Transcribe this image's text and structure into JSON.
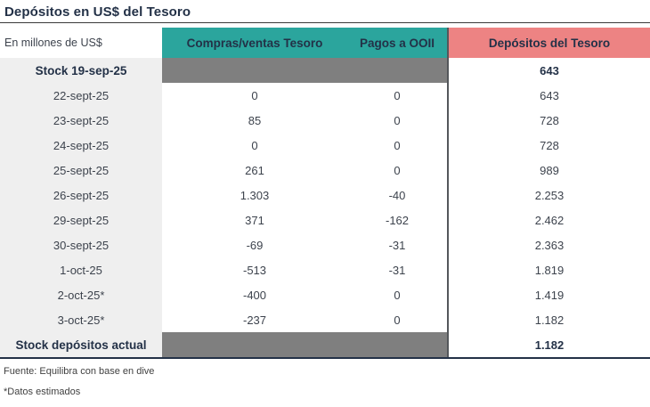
{
  "title": "Depósitos en US$ del Tesoro",
  "unit_label": "En millones de US$",
  "footnotes": {
    "source": "Fuente: Equilibra con base en dive",
    "estimate": "*Datos estimados"
  },
  "colors": {
    "teal_header": "#2BA59D",
    "salmon_header": "#ED8383",
    "gray_blocked_cell": "#7F7F7F",
    "label_column_bg": "#EFEFEF",
    "navy_text": "#233147"
  },
  "chart_data": {
    "type": "table",
    "title": "Depósitos en US$ del Tesoro",
    "unit_label": "En millones de US$",
    "columns": [
      "",
      "Compras/ventas Tesoro",
      "Pagos a OOII",
      "Depósitos del Tesoro"
    ],
    "rows": [
      {
        "label": "Stock 19-sep-25",
        "compras": "",
        "pagos": "",
        "depositos": "643",
        "is_stock": true
      },
      {
        "label": "22-sept-25",
        "compras": "0",
        "pagos": "0",
        "depositos": "643",
        "is_stock": false
      },
      {
        "label": "23-sept-25",
        "compras": "85",
        "pagos": "0",
        "depositos": "728",
        "is_stock": false
      },
      {
        "label": "24-sept-25",
        "compras": "0",
        "pagos": "0",
        "depositos": "728",
        "is_stock": false
      },
      {
        "label": "25-sept-25",
        "compras": "261",
        "pagos": "0",
        "depositos": "989",
        "is_stock": false
      },
      {
        "label": "26-sept-25",
        "compras": "1.303",
        "pagos": "-40",
        "depositos": "2.253",
        "is_stock": false
      },
      {
        "label": "29-sept-25",
        "compras": "371",
        "pagos": "-162",
        "depositos": "2.462",
        "is_stock": false
      },
      {
        "label": "30-sept-25",
        "compras": "-69",
        "pagos": "-31",
        "depositos": "2.363",
        "is_stock": false
      },
      {
        "label": "1-oct-25",
        "compras": "-513",
        "pagos": "-31",
        "depositos": "1.819",
        "is_stock": false
      },
      {
        "label": "2-oct-25*",
        "compras": "-400",
        "pagos": "0",
        "depositos": "1.419",
        "is_stock": false
      },
      {
        "label": "3-oct-25*",
        "compras": "-237",
        "pagos": "0",
        "depositos": "1.182",
        "is_stock": false
      },
      {
        "label": "Stock depósitos actual",
        "compras": "",
        "pagos": "",
        "depositos": "1.182",
        "is_stock": true
      }
    ]
  }
}
